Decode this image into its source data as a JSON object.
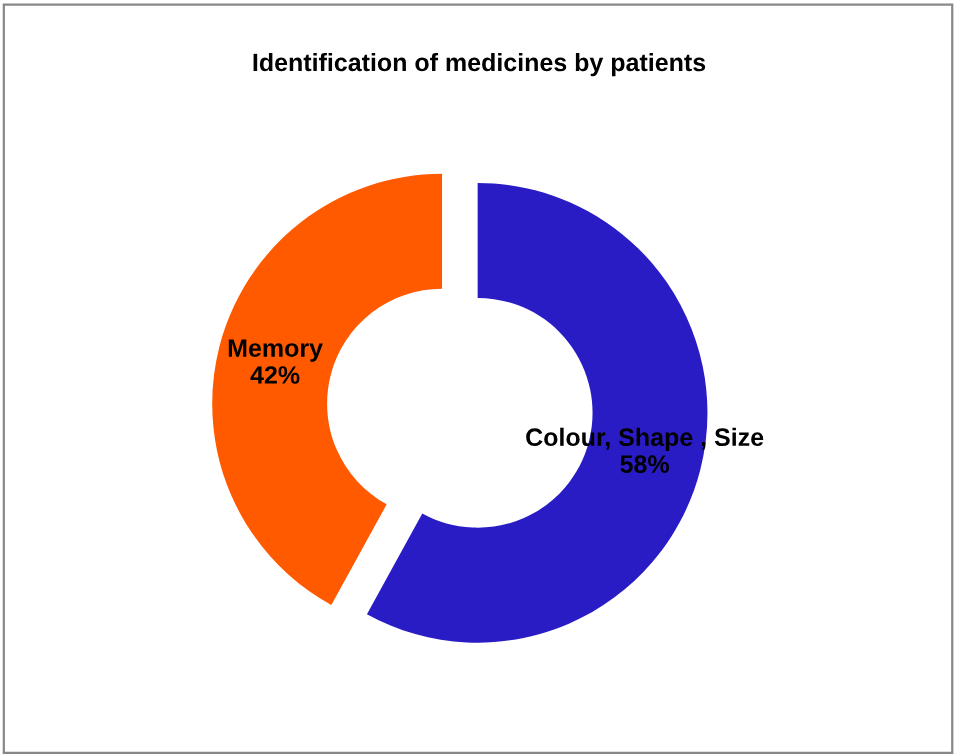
{
  "chart_data": {
    "type": "donut",
    "title": "Identification of medicines by patients",
    "categories": [
      "Colour, Shape , Size",
      "Memory"
    ],
    "values": [
      58,
      42
    ],
    "colors": [
      "#2a1cc4",
      "#ff5a00"
    ],
    "data_labels": true,
    "value_labels": [
      "58%",
      "42%"
    ],
    "legend": false
  }
}
